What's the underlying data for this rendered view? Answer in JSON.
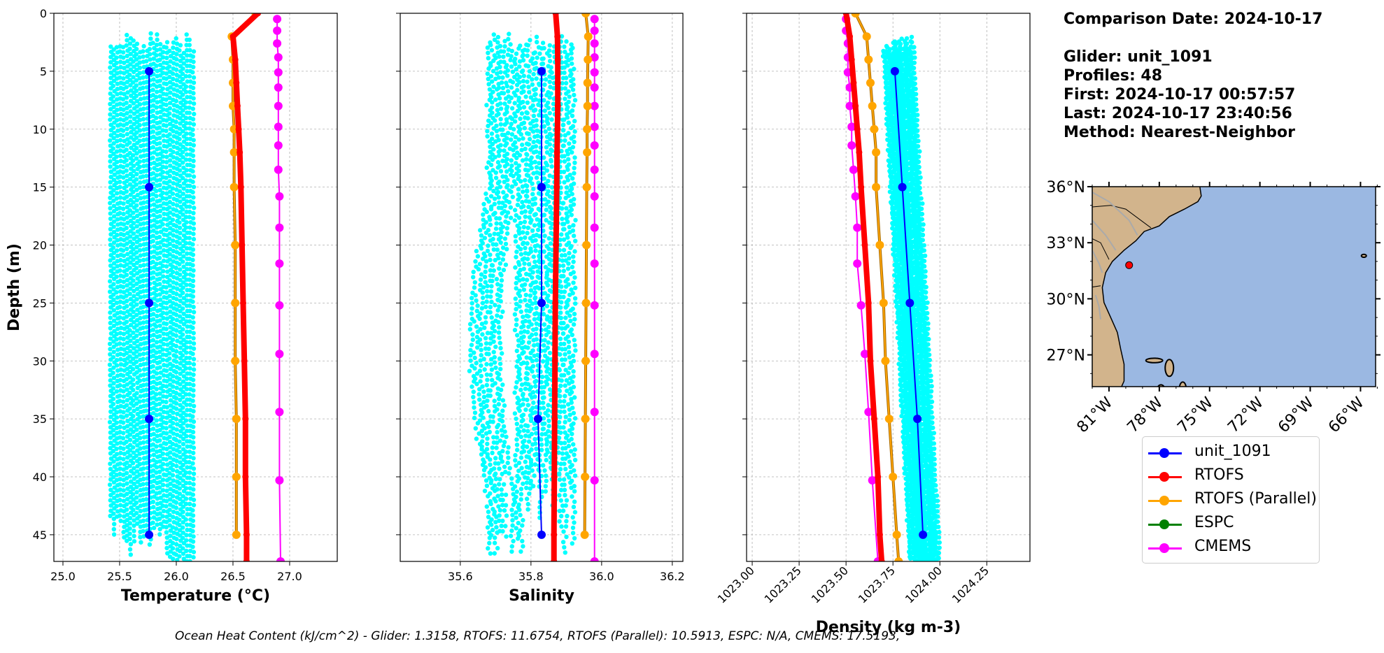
{
  "info": {
    "comparison_date": "Comparison Date: 2024-10-17",
    "glider": "Glider: unit_1091",
    "profiles": "Profiles: 48",
    "first": "First: 2024-10-17 00:57:57",
    "last": "Last: 2024-10-17 23:40:56",
    "method": "Method: Nearest-Neighbor"
  },
  "footer": "Ocean Heat Content (kJ/cm^2) - Glider: 1.3158,  RTOFS: 11.6754,  RTOFS (Parallel): 10.5913,  ESPC: N/A,  CMEMS: 17.5193,",
  "colors": {
    "glider_raw": "#00ffff",
    "unit_1091": "#0000ff",
    "RTOFS": "#ff0000",
    "RTOFS_parallel": "#ffa500",
    "ESPC": "#008000",
    "CMEMS": "#ff00ff",
    "ocean": "#9bb8e2",
    "land": "#d2b48c"
  },
  "legend": [
    {
      "label": "unit_1091",
      "color": "#0000ff"
    },
    {
      "label": "RTOFS",
      "color": "#ff0000"
    },
    {
      "label": "RTOFS (Parallel)",
      "color": "#ffa500"
    },
    {
      "label": "ESPC",
      "color": "#008000"
    },
    {
      "label": "CMEMS",
      "color": "#ff00ff"
    }
  ],
  "chart_data": [
    {
      "type": "line",
      "xlabel": "Temperature (°C)",
      "ylabel": "Depth (m)",
      "xlim": [
        24.92,
        27.42
      ],
      "ylim": [
        47.3,
        0
      ],
      "xticks": [
        25.0,
        25.5,
        26.0,
        26.5,
        27.0
      ],
      "xtick_labels": [
        "25.0",
        "25.5",
        "26.0",
        "26.5",
        "27.0"
      ],
      "yticks": [
        0,
        5,
        10,
        15,
        20,
        25,
        30,
        35,
        40,
        45
      ],
      "grid": true,
      "raw_cloud": {
        "series": "glider raw profiles",
        "x_range": [
          25.42,
          26.15
        ],
        "depth_range": [
          1.7,
          47.3
        ]
      },
      "series": [
        {
          "name": "unit_1091",
          "depth": [
            5,
            15,
            25,
            35,
            45
          ],
          "x": [
            25.76,
            25.76,
            25.76,
            25.76,
            25.76
          ]
        },
        {
          "name": "RTOFS",
          "depth": [
            0,
            2,
            4,
            6,
            8,
            10,
            12,
            15,
            20,
            25,
            30,
            35,
            40,
            45,
            47.3
          ],
          "x": [
            26.72,
            26.5,
            26.52,
            26.53,
            26.54,
            26.55,
            26.56,
            26.57,
            26.58,
            26.59,
            26.6,
            26.61,
            26.61,
            26.62,
            26.62
          ]
        },
        {
          "name": "RTOFS (Parallel)",
          "depth": [
            0,
            2,
            4,
            6,
            8,
            10,
            12,
            15,
            20,
            25,
            30,
            35,
            40,
            45
          ],
          "x": [
            26.7,
            26.49,
            26.5,
            26.5,
            26.5,
            26.51,
            26.51,
            26.51,
            26.52,
            26.52,
            26.52,
            26.53,
            26.53,
            26.53
          ]
        },
        {
          "name": "CMEMS",
          "depth": [
            0.5,
            1.5,
            2.6,
            3.8,
            5.1,
            6.4,
            8.0,
            9.8,
            11.4,
            13.5,
            15.8,
            18.5,
            21.6,
            25.2,
            29.4,
            34.4,
            40.3,
            47.3
          ],
          "x": [
            26.89,
            26.89,
            26.89,
            26.9,
            26.9,
            26.9,
            26.9,
            26.9,
            26.9,
            26.9,
            26.91,
            26.91,
            26.91,
            26.91,
            26.91,
            26.91,
            26.91,
            26.92
          ]
        }
      ]
    },
    {
      "type": "line",
      "xlabel": "Salinity",
      "xlim": [
        35.43,
        36.23
      ],
      "ylim": [
        47.3,
        0
      ],
      "xticks": [
        35.6,
        35.8,
        36.0,
        36.2
      ],
      "xtick_labels": [
        "35.6",
        "35.8",
        "36.0",
        "36.2"
      ],
      "yticks": [
        0,
        5,
        10,
        15,
        20,
        25,
        30,
        35,
        40,
        45
      ],
      "grid": true,
      "raw_cloud": {
        "series": "glider raw profiles",
        "x_range": [
          35.68,
          35.92
        ],
        "depth_range": [
          1.7,
          47.3
        ]
      },
      "series": [
        {
          "name": "unit_1091",
          "depth": [
            5,
            15,
            25,
            35,
            45
          ],
          "x": [
            35.83,
            35.83,
            35.83,
            35.82,
            35.83
          ]
        },
        {
          "name": "RTOFS",
          "depth": [
            0,
            2,
            4,
            6,
            8,
            10,
            12,
            15,
            20,
            25,
            30,
            35,
            40,
            45,
            47.3
          ],
          "x": [
            35.87,
            35.875,
            35.876,
            35.876,
            35.876,
            35.875,
            35.874,
            35.873,
            35.871,
            35.869,
            35.868,
            35.867,
            35.866,
            35.865,
            35.865
          ]
        },
        {
          "name": "RTOFS (Parallel)",
          "depth": [
            0,
            2,
            4,
            6,
            8,
            10,
            12,
            15,
            20,
            25,
            30,
            35,
            40,
            45
          ],
          "x": [
            35.955,
            35.962,
            35.961,
            35.96,
            35.96,
            35.959,
            35.959,
            35.958,
            35.957,
            35.956,
            35.955,
            35.954,
            35.953,
            35.952
          ]
        },
        {
          "name": "CMEMS",
          "depth": [
            0.5,
            1.5,
            2.6,
            3.8,
            5.1,
            6.4,
            8.0,
            9.8,
            11.4,
            13.5,
            15.8,
            18.5,
            21.6,
            25.2,
            29.4,
            34.4,
            40.3,
            47.3
          ],
          "x": [
            35.98,
            35.98,
            35.98,
            35.98,
            35.98,
            35.98,
            35.98,
            35.98,
            35.98,
            35.98,
            35.98,
            35.98,
            35.98,
            35.98,
            35.98,
            35.98,
            35.98,
            35.98
          ]
        }
      ]
    },
    {
      "type": "line",
      "xlabel": "Density (kg m-3)",
      "xlim": [
        1022.97,
        1024.48
      ],
      "ylim": [
        47.3,
        0
      ],
      "xticks": [
        1023.0,
        1023.25,
        1023.5,
        1023.75,
        1024.0,
        1024.25
      ],
      "xtick_labels": [
        "1023.00",
        "1023.25",
        "1023.50",
        "1023.75",
        "1024.00",
        "1024.25"
      ],
      "yticks": [
        0,
        5,
        10,
        15,
        20,
        25,
        30,
        35,
        40,
        45
      ],
      "grid": true,
      "raw_cloud": {
        "series": "glider raw profiles",
        "x_range_top": [
          1023.69,
          1023.85
        ],
        "x_range_bottom": [
          1023.84,
          1024.0
        ],
        "depth_range": [
          2.0,
          47.3
        ]
      },
      "series": [
        {
          "name": "unit_1091",
          "depth": [
            5,
            15,
            25,
            35,
            45
          ],
          "x": [
            1023.76,
            1023.8,
            1023.84,
            1023.88,
            1023.91
          ]
        },
        {
          "name": "RTOFS",
          "depth": [
            0,
            2,
            4,
            6,
            8,
            10,
            12,
            15,
            20,
            25,
            30,
            35,
            40,
            45,
            47.3
          ],
          "x": [
            1023.5,
            1023.52,
            1023.53,
            1023.54,
            1023.55,
            1023.56,
            1023.57,
            1023.58,
            1023.6,
            1023.62,
            1023.63,
            1023.65,
            1023.67,
            1023.68,
            1023.69
          ]
        },
        {
          "name": "RTOFS (Parallel)",
          "depth": [
            0,
            2,
            4,
            6,
            8,
            10,
            12,
            15,
            20,
            25,
            30,
            35,
            40,
            45,
            47.3
          ],
          "x": [
            1023.55,
            1023.61,
            1023.62,
            1023.63,
            1023.64,
            1023.65,
            1023.66,
            1023.66,
            1023.68,
            1023.7,
            1023.71,
            1023.73,
            1023.75,
            1023.77,
            1023.78
          ]
        },
        {
          "name": "CMEMS",
          "depth": [
            0.5,
            1.5,
            2.6,
            3.8,
            5.1,
            6.4,
            8.0,
            9.8,
            11.4,
            13.5,
            15.8,
            18.5,
            21.6,
            25.2,
            29.4,
            34.4,
            40.3,
            47.3
          ],
          "x": [
            1023.5,
            1023.5,
            1023.51,
            1023.51,
            1023.51,
            1023.52,
            1023.52,
            1023.53,
            1023.53,
            1023.54,
            1023.55,
            1023.56,
            1023.56,
            1023.58,
            1023.6,
            1023.62,
            1023.64,
            1023.67
          ]
        }
      ]
    }
  ],
  "map": {
    "lat_range": [
      25.3,
      36.0
    ],
    "lon_range": [
      -82.0,
      -65.1
    ],
    "lat_ticks": [
      27,
      30,
      33,
      36
    ],
    "lat_labels": [
      "27°N",
      "30°N",
      "33°N",
      "36°N"
    ],
    "lon_ticks": [
      -81,
      -78,
      -75,
      -72,
      -69,
      -66
    ],
    "lon_labels": [
      "81°W",
      "78°W",
      "75°W",
      "72°W",
      "69°W",
      "66°W"
    ],
    "glider_position": {
      "lat": 31.8,
      "lon": -79.8
    }
  }
}
